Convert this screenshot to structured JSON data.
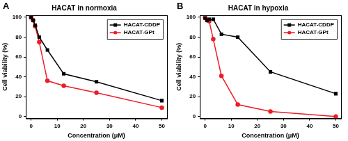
{
  "chart_data": [
    {
      "type": "line",
      "panel": "A",
      "title": "HACAT in normoxia",
      "x_label": "Concentration (μM)",
      "y_label": "Cell viability (%)",
      "x": [
        0,
        0.78,
        1.56,
        3.125,
        6.25,
        12.5,
        25,
        50
      ],
      "series": [
        {
          "name": "HACAT-CDDP",
          "color": "#000000",
          "marker": "square",
          "values": [
            100,
            97,
            92,
            80,
            67,
            43,
            35,
            16
          ]
        },
        {
          "name": "HACAT-GPt",
          "color": "#ee1c25",
          "marker": "circle",
          "values": [
            100,
            97,
            91,
            75,
            36,
            31,
            24,
            9
          ]
        }
      ],
      "xlim": [
        -2,
        52
      ],
      "xticks": [
        0,
        10,
        20,
        30,
        40,
        50
      ],
      "ylim": [
        -2,
        102
      ],
      "yticks": [
        0,
        20,
        40,
        60,
        80,
        100
      ],
      "grid": false,
      "legend": "top-right"
    },
    {
      "type": "line",
      "panel": "B",
      "title": "HACAT in hypoxia",
      "x_label": "Concentration (μM)",
      "y_label": "Cell viability (%)",
      "x": [
        0,
        0.78,
        1.56,
        3.125,
        6.25,
        12.5,
        25,
        50
      ],
      "series": [
        {
          "name": "HACAT-CDDP",
          "color": "#000000",
          "marker": "square",
          "values": [
            99,
            97,
            98,
            98,
            83,
            80,
            45,
            23
          ]
        },
        {
          "name": "HACAT-GPt",
          "color": "#ee1c25",
          "marker": "circle",
          "values": [
            100,
            97,
            96,
            78,
            41,
            12,
            5,
            0
          ]
        }
      ],
      "xlim": [
        -2,
        52
      ],
      "xticks": [
        0,
        10,
        20,
        30,
        40,
        50
      ],
      "ylim": [
        -2,
        102
      ],
      "yticks": [
        0,
        20,
        40,
        60,
        80,
        100
      ],
      "grid": false,
      "legend": "top-right"
    }
  ]
}
